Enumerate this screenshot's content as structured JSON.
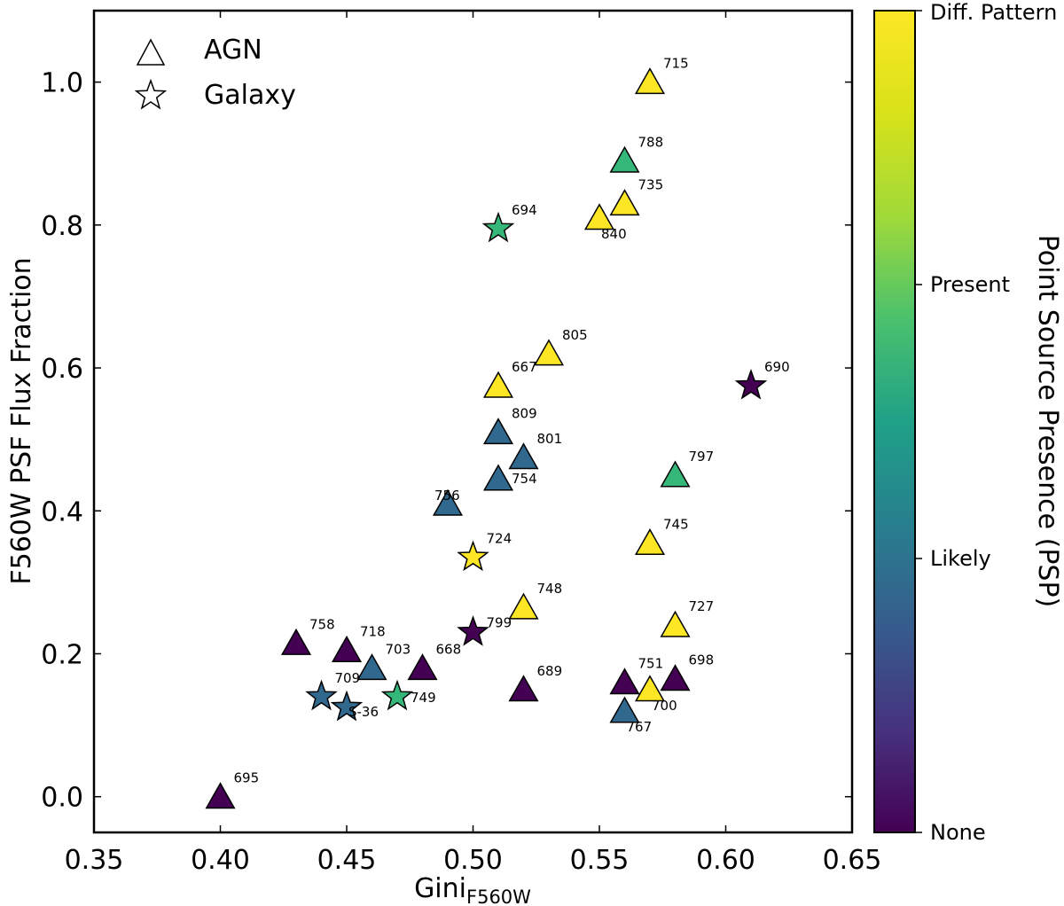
{
  "chart_data": {
    "type": "scatter",
    "xlabel": "Gini",
    "xlabel_subscript": "F560W",
    "ylabel": "F560W PSF Flux Fraction",
    "xlim": [
      0.35,
      0.65
    ],
    "ylim": [
      -0.05,
      1.1
    ],
    "x_ticks": [
      "0.35",
      "0.40",
      "0.45",
      "0.50",
      "0.55",
      "0.60",
      "0.65"
    ],
    "y_ticks": [
      "0.0",
      "0.2",
      "0.4",
      "0.6",
      "0.8",
      "1.0"
    ],
    "grid": false,
    "legend": {
      "placement": "top-left",
      "entries": [
        {
          "marker": "triangle",
          "label": "AGN"
        },
        {
          "marker": "star",
          "label": "Galaxy"
        }
      ]
    },
    "colorbar": {
      "label": "Point Source Presence (PSP)",
      "colormap": "viridis",
      "ticks": [
        "None",
        "Likely",
        "Present",
        "Diff. Pattern"
      ],
      "colors": {
        "None": "#440154",
        "Likely": "#31688e",
        "Present": "#35b779",
        "Diff. Pattern": "#fde725"
      }
    },
    "points": [
      {
        "id": "715",
        "x": 0.57,
        "y": 1.0,
        "type": "AGN",
        "psp": "Diff. Pattern"
      },
      {
        "id": "788",
        "x": 0.56,
        "y": 0.89,
        "type": "AGN",
        "psp": "Present"
      },
      {
        "id": "735",
        "x": 0.56,
        "y": 0.83,
        "type": "AGN",
        "psp": "Diff. Pattern"
      },
      {
        "id": "840",
        "x": 0.55,
        "y": 0.81,
        "type": "AGN",
        "psp": "Diff. Pattern"
      },
      {
        "id": "694",
        "x": 0.51,
        "y": 0.795,
        "type": "Galaxy",
        "psp": "Present"
      },
      {
        "id": "805",
        "x": 0.53,
        "y": 0.62,
        "type": "AGN",
        "psp": "Diff. Pattern"
      },
      {
        "id": "667",
        "x": 0.51,
        "y": 0.575,
        "type": "AGN",
        "psp": "Diff. Pattern"
      },
      {
        "id": "690",
        "x": 0.61,
        "y": 0.575,
        "type": "Galaxy",
        "psp": "None"
      },
      {
        "id": "809",
        "x": 0.51,
        "y": 0.51,
        "type": "AGN",
        "psp": "Likely"
      },
      {
        "id": "801",
        "x": 0.52,
        "y": 0.475,
        "type": "AGN",
        "psp": "Likely"
      },
      {
        "id": "797",
        "x": 0.58,
        "y": 0.45,
        "type": "AGN",
        "psp": "Present"
      },
      {
        "id": "754",
        "x": 0.51,
        "y": 0.445,
        "type": "AGN",
        "psp": "Likely"
      },
      {
        "id": "756",
        "x": 0.49,
        "y": 0.41,
        "type": "AGN",
        "psp": "Likely"
      },
      {
        "id": "745",
        "x": 0.57,
        "y": 0.355,
        "type": "AGN",
        "psp": "Diff. Pattern"
      },
      {
        "id": "724",
        "x": 0.5,
        "y": 0.335,
        "type": "Galaxy",
        "psp": "Diff. Pattern"
      },
      {
        "id": "748",
        "x": 0.52,
        "y": 0.265,
        "type": "AGN",
        "psp": "Diff. Pattern"
      },
      {
        "id": "727",
        "x": 0.58,
        "y": 0.24,
        "type": "AGN",
        "psp": "Diff. Pattern"
      },
      {
        "id": "799",
        "x": 0.5,
        "y": 0.23,
        "type": "Galaxy",
        "psp": "None"
      },
      {
        "id": "758",
        "x": 0.43,
        "y": 0.215,
        "type": "AGN",
        "psp": "None"
      },
      {
        "id": "718",
        "x": 0.45,
        "y": 0.205,
        "type": "AGN",
        "psp": "None"
      },
      {
        "id": "703",
        "x": 0.46,
        "y": 0.18,
        "type": "AGN",
        "psp": "Likely"
      },
      {
        "id": "668",
        "x": 0.48,
        "y": 0.18,
        "type": "AGN",
        "psp": "None"
      },
      {
        "id": "698",
        "x": 0.58,
        "y": 0.165,
        "type": "AGN",
        "psp": "None"
      },
      {
        "id": "751",
        "x": 0.56,
        "y": 0.16,
        "type": "AGN",
        "psp": "None"
      },
      {
        "id": "689",
        "x": 0.52,
        "y": 0.15,
        "type": "AGN",
        "psp": "None"
      },
      {
        "id": "700",
        "x": 0.57,
        "y": 0.15,
        "type": "AGN",
        "psp": "Diff. Pattern"
      },
      {
        "id": "749",
        "x": 0.47,
        "y": 0.14,
        "type": "Galaxy",
        "psp": "Present"
      },
      {
        "id": "709",
        "x": 0.44,
        "y": 0.14,
        "type": "Galaxy",
        "psp": "Likely"
      },
      {
        "id": "S-36",
        "x": 0.45,
        "y": 0.125,
        "type": "Galaxy",
        "psp": "Likely"
      },
      {
        "id": "767",
        "x": 0.56,
        "y": 0.12,
        "type": "AGN",
        "psp": "Likely"
      },
      {
        "id": "695",
        "x": 0.4,
        "y": 0.0,
        "type": "AGN",
        "psp": "None"
      }
    ]
  }
}
